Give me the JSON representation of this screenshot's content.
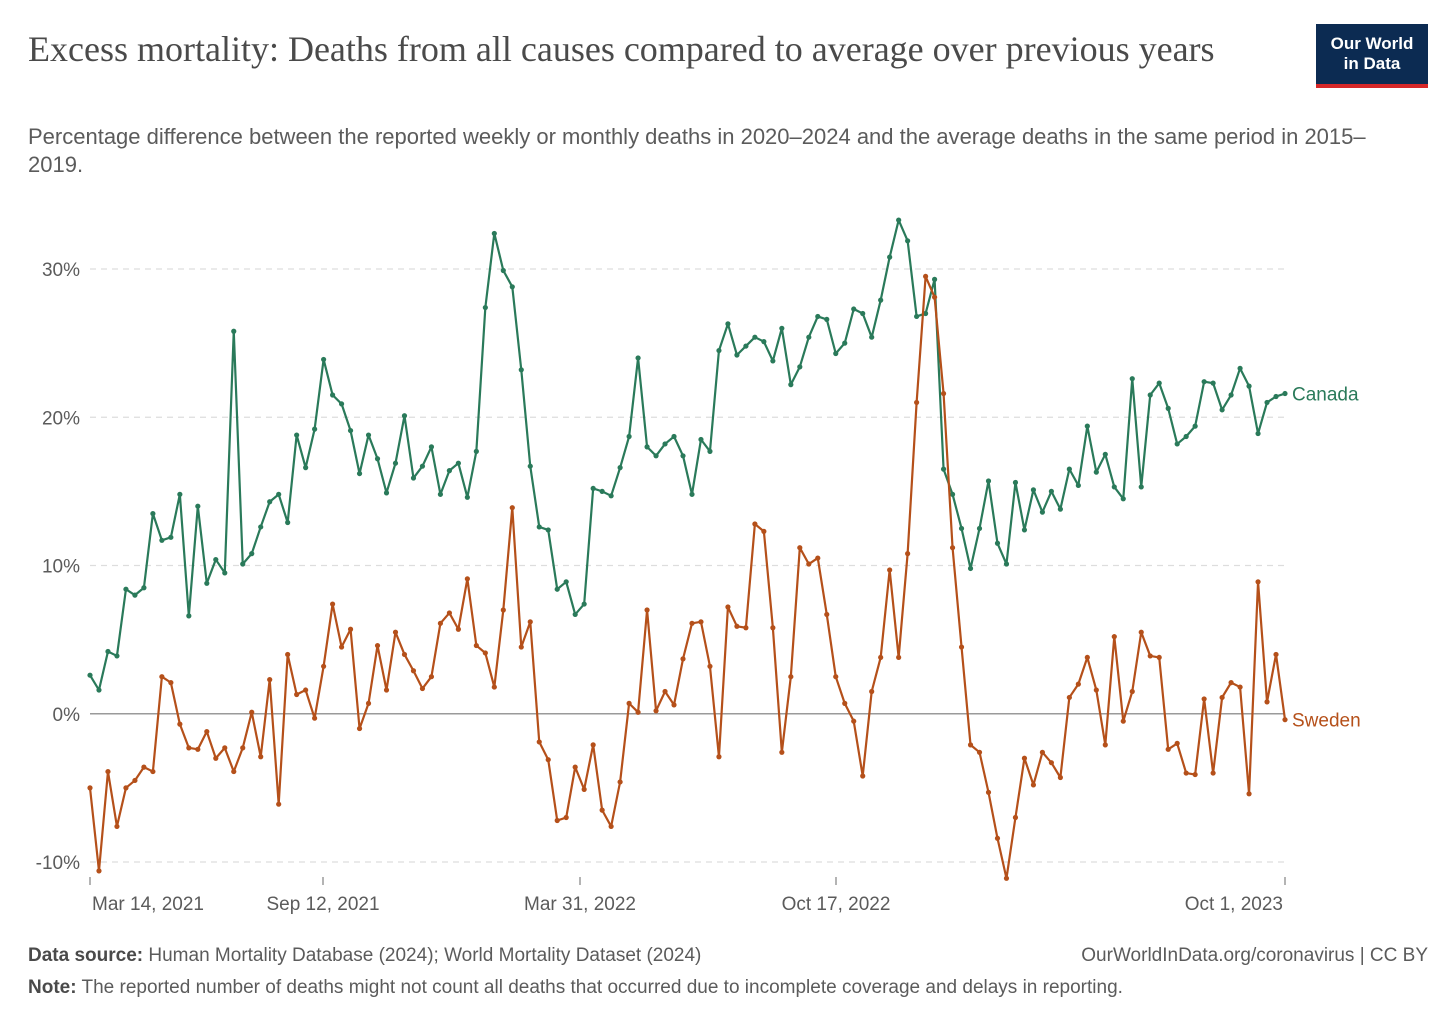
{
  "header": {
    "title": "Excess mortality: Deaths from all causes compared to average over previous years",
    "subtitle": "Percentage difference between the reported weekly or monthly deaths in 2020–2024 and the average deaths in the same period in 2015–2019."
  },
  "logo": {
    "line1": "Our World",
    "line2": "in Data"
  },
  "footer": {
    "source_label": "Data source:",
    "source_text": "Human Mortality Database (2024); World Mortality Dataset (2024)",
    "url_text": "OurWorldInData.org/coronavirus | CC BY",
    "note_label": "Note:",
    "note_text": "The reported number of deaths might not count all deaths that occurred due to incomplete coverage and delays in reporting."
  },
  "chart_data": {
    "type": "line",
    "x_tick_labels": [
      "Mar 14, 2021",
      "Sep 12, 2021",
      "Mar 31, 2022",
      "Oct 17, 2022",
      "Oct 1, 2023"
    ],
    "y_tick_labels": [
      "30%",
      "20%",
      "10%",
      "0%",
      "-10%"
    ],
    "y_ticks": [
      30,
      20,
      10,
      0,
      -10
    ],
    "ylim": [
      -11.5,
      33.5
    ],
    "grid": true,
    "legend": "line-end labels",
    "series": [
      {
        "name": "Canada",
        "color": "#2a7a5a",
        "values": [
          2.6,
          1.6,
          4.2,
          3.9,
          8.4,
          8.0,
          8.5,
          13.5,
          11.7,
          11.9,
          14.8,
          6.6,
          14.0,
          8.8,
          10.4,
          9.5,
          25.8,
          10.1,
          10.8,
          12.6,
          14.3,
          14.8,
          12.9,
          18.8,
          16.6,
          19.2,
          23.9,
          21.5,
          20.9,
          19.1,
          16.2,
          18.8,
          17.2,
          14.9,
          16.9,
          20.1,
          15.9,
          16.7,
          18.0,
          14.8,
          16.4,
          16.9,
          14.6,
          17.7,
          27.4,
          32.4,
          29.9,
          28.8,
          23.2,
          16.7,
          12.6,
          12.4,
          8.4,
          8.9,
          6.7,
          7.4,
          15.2,
          15.0,
          14.7,
          16.6,
          18.7,
          24.0,
          18.0,
          17.4,
          18.2,
          18.7,
          17.4,
          14.8,
          18.5,
          17.7,
          24.5,
          26.3,
          24.2,
          24.8,
          25.4,
          25.1,
          23.8,
          26.0,
          22.2,
          23.4,
          25.4,
          26.8,
          26.6,
          24.3,
          25.0,
          27.3,
          27.0,
          25.4,
          27.9,
          30.8,
          33.3,
          31.9,
          26.8,
          27.0,
          29.3,
          16.5,
          14.8,
          12.5,
          9.8,
          12.5,
          15.7,
          11.5,
          10.1,
          15.6,
          12.4,
          15.1,
          13.6,
          15.0,
          13.8,
          16.5,
          15.4,
          19.4,
          16.3,
          17.5,
          15.3,
          14.5,
          22.6,
          15.3,
          21.5,
          22.3,
          20.6,
          18.2,
          18.7,
          19.4,
          22.4,
          22.3,
          20.5,
          21.5,
          23.3,
          22.1,
          18.9,
          21.0,
          21.4,
          21.6
        ]
      },
      {
        "name": "Sweden",
        "color": "#b5501a",
        "values": [
          -5.0,
          -10.6,
          -3.9,
          -7.6,
          -5.0,
          -4.5,
          -3.6,
          -3.9,
          2.5,
          2.1,
          -0.7,
          -2.3,
          -2.4,
          -1.2,
          -3.0,
          -2.3,
          -3.9,
          -2.3,
          0.1,
          -2.9,
          2.3,
          -6.1,
          4.0,
          1.3,
          1.6,
          -0.3,
          3.2,
          7.4,
          4.5,
          5.7,
          -1.0,
          0.7,
          4.6,
          1.6,
          5.5,
          4.0,
          2.9,
          1.7,
          2.5,
          6.1,
          6.8,
          5.7,
          9.1,
          4.6,
          4.1,
          1.8,
          7.0,
          13.9,
          4.5,
          6.2,
          -1.9,
          -3.1,
          -7.2,
          -7.0,
          -3.6,
          -5.1,
          -2.1,
          -6.5,
          -7.6,
          -4.6,
          0.7,
          0.1,
          7.0,
          0.2,
          1.5,
          0.6,
          3.7,
          6.1,
          6.2,
          3.2,
          -2.9,
          7.2,
          5.9,
          5.8,
          12.8,
          12.3,
          5.8,
          -2.6,
          2.5,
          11.2,
          10.1,
          10.5,
          6.7,
          2.5,
          0.7,
          -0.5,
          -4.2,
          1.5,
          3.8,
          9.7,
          3.8,
          10.8,
          21.0,
          29.5,
          28.1,
          21.6,
          11.2,
          4.5,
          -2.1,
          -2.6,
          -5.3,
          -8.4,
          -11.1,
          -7.0,
          -3.0,
          -4.8,
          -2.6,
          -3.3,
          -4.3,
          1.1,
          2.0,
          3.8,
          1.6,
          -2.1,
          5.2,
          -0.5,
          1.5,
          5.5,
          3.9,
          3.8,
          -2.4,
          -2.0,
          -4.0,
          -4.1,
          1.0,
          -4.0,
          1.1,
          2.1,
          1.8,
          -5.4,
          8.9,
          0.8,
          4.0,
          -0.4
        ]
      }
    ]
  }
}
